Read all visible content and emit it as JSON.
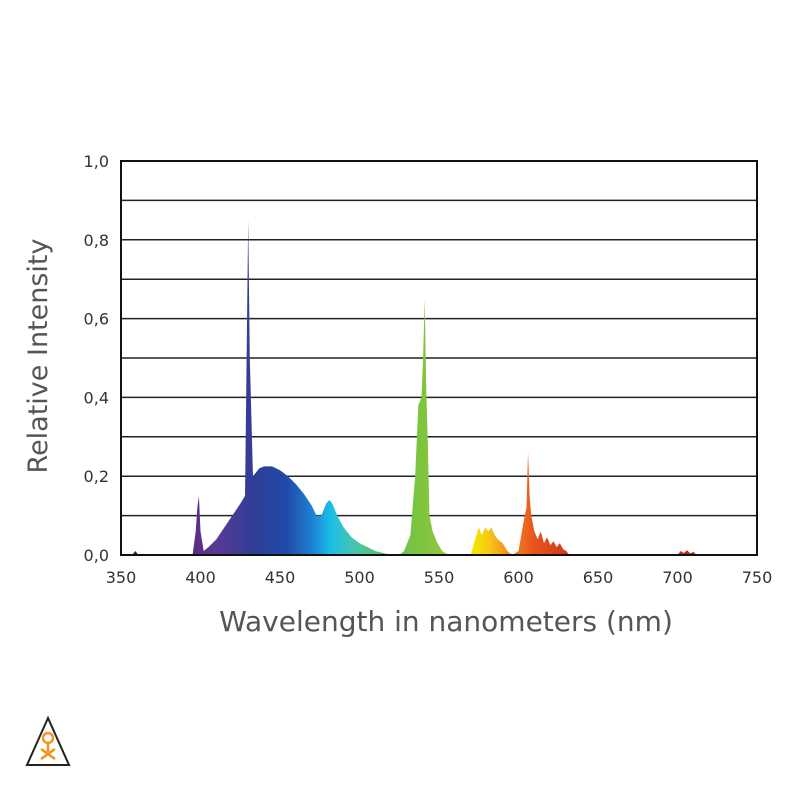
{
  "chart_data": {
    "type": "area",
    "title": "",
    "xlabel": "Wavelength in nanometers (nm)",
    "ylabel": "Relative  Intensity",
    "xlim": [
      350,
      750
    ],
    "ylim": [
      0,
      1.0
    ],
    "x_ticks": [
      "350",
      "400",
      "450",
      "500",
      "550",
      "600",
      "650",
      "700",
      "750"
    ],
    "y_ticks": [
      "0,0",
      "0,2",
      "0,4",
      "0,6",
      "0,8",
      "1,0"
    ],
    "grid": "horizontal",
    "legend": "none",
    "series": [
      {
        "x": [
          350,
          357,
          359,
          361,
          395,
          397,
          398,
          399,
          400,
          402,
          405,
          410,
          415,
          420,
          425,
          428,
          429,
          430,
          431,
          433,
          437,
          440,
          445,
          450,
          455,
          460,
          465,
          470,
          473,
          476,
          479,
          481,
          483,
          486,
          490,
          495,
          500,
          505,
          510,
          515,
          520,
          525,
          528,
          532,
          535,
          537,
          539,
          540,
          541,
          542,
          543,
          544,
          546,
          549,
          552,
          554,
          556,
          570,
          572,
          575,
          577,
          579,
          581,
          583,
          585,
          587,
          590,
          593,
          596,
          600,
          603,
          605,
          606,
          607,
          608,
          609,
          610,
          612,
          614,
          616,
          618,
          620,
          622,
          624,
          626,
          628,
          630,
          632,
          650,
          700,
          702,
          704,
          706,
          708,
          710,
          712,
          750
        ],
        "y": [
          0,
          0,
          0.01,
          0,
          0,
          0.06,
          0.12,
          0.15,
          0.06,
          0.01,
          0.02,
          0.04,
          0.07,
          0.1,
          0.13,
          0.15,
          0.5,
          0.85,
          0.5,
          0.2,
          0.22,
          0.225,
          0.225,
          0.215,
          0.2,
          0.18,
          0.155,
          0.125,
          0.1,
          0.1,
          0.13,
          0.14,
          0.13,
          0.1,
          0.07,
          0.045,
          0.03,
          0.02,
          0.01,
          0.005,
          0,
          0,
          0.01,
          0.05,
          0.2,
          0.38,
          0.4,
          0.5,
          0.65,
          0.42,
          0.28,
          0.1,
          0.06,
          0.03,
          0.01,
          0.005,
          0,
          0,
          0.03,
          0.07,
          0.05,
          0.07,
          0.06,
          0.07,
          0.05,
          0.04,
          0.03,
          0.01,
          0,
          0.01,
          0.08,
          0.12,
          0.26,
          0.15,
          0.1,
          0.08,
          0.06,
          0.04,
          0.06,
          0.03,
          0.045,
          0.025,
          0.035,
          0.02,
          0.03,
          0.015,
          0.01,
          0,
          0,
          0,
          0.01,
          0.005,
          0.012,
          0.004,
          0.008,
          0,
          0
        ]
      }
    ]
  },
  "logo": {
    "name": "warning-triangle-logo"
  }
}
